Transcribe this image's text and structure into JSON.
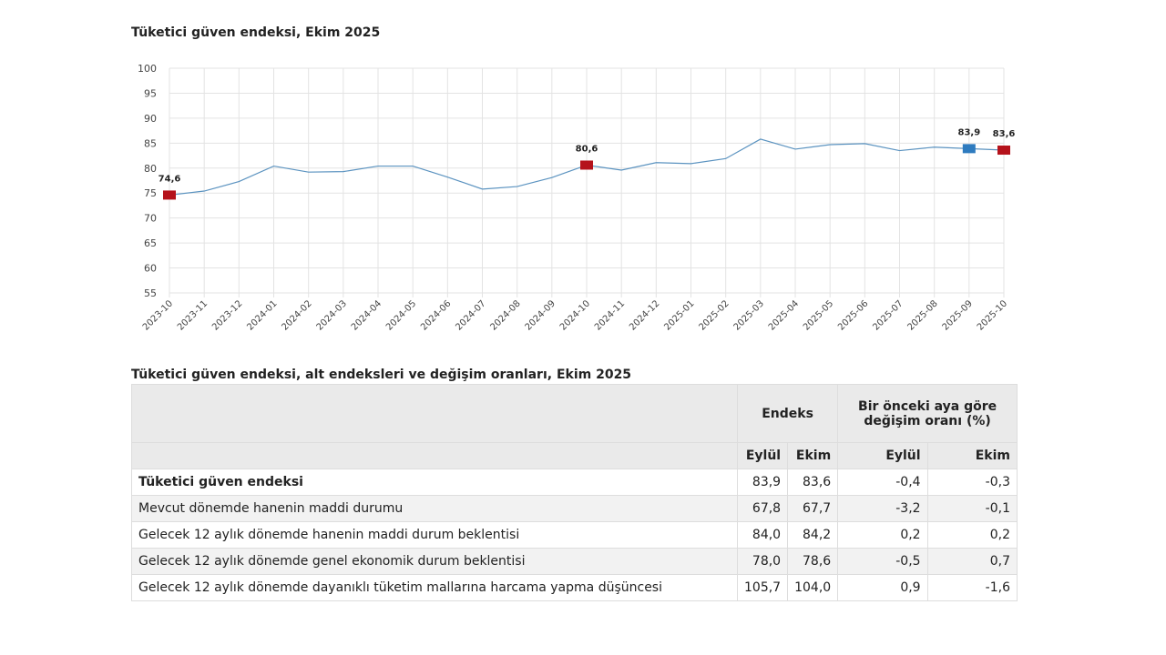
{
  "chart_data": {
    "type": "line",
    "title": "Tüketici güven endeksi, Ekim 2025",
    "x": [
      "2023-10",
      "2023-11",
      "2023-12",
      "2024-01",
      "2024-02",
      "2024-03",
      "2024-04",
      "2024-05",
      "2024-06",
      "2024-07",
      "2024-08",
      "2024-09",
      "2024-10",
      "2024-11",
      "2024-12",
      "2025-01",
      "2025-02",
      "2025-03",
      "2025-04",
      "2025-05",
      "2025-06",
      "2025-07",
      "2025-08",
      "2025-09",
      "2025-10"
    ],
    "values": [
      74.6,
      75.4,
      77.3,
      80.4,
      79.2,
      79.3,
      80.4,
      80.4,
      78.2,
      75.8,
      76.3,
      78.1,
      80.6,
      79.6,
      81.1,
      80.9,
      81.9,
      85.8,
      83.8,
      84.7,
      84.9,
      83.5,
      84.2,
      83.9,
      83.6
    ],
    "ylim": [
      55,
      100
    ],
    "yticks": [
      55,
      60,
      65,
      70,
      75,
      80,
      85,
      90,
      95,
      100
    ],
    "grid": true,
    "highlights": [
      {
        "x": "2023-10",
        "label": "74,6",
        "color": "#b5121b"
      },
      {
        "x": "2024-10",
        "label": "80,6",
        "color": "#b5121b"
      },
      {
        "x": "2025-09",
        "label": "83,9",
        "color": "#2e7bbf"
      },
      {
        "x": "2025-10",
        "label": "83,6",
        "color": "#b5121b"
      }
    ],
    "line_color": "#5b93c0"
  },
  "table": {
    "title": "Tüketici güven endeksi, alt endeksleri ve değişim oranları, Ekim 2025",
    "h_endeks": "Endeks",
    "h_change": "Bir önceki aya göre değişim oranı (%)",
    "sub": [
      "Eylül",
      "Ekim",
      "Eylül",
      "Ekim"
    ],
    "rows": [
      {
        "label": "Tüketici güven endeksi",
        "v": [
          "83,9",
          "83,6",
          "-0,4",
          "-0,3"
        ]
      },
      {
        "label": "Mevcut dönemde hanenin maddi durumu",
        "v": [
          "67,8",
          "67,7",
          "-3,2",
          "-0,1"
        ]
      },
      {
        "label": "Gelecek 12 aylık dönemde hanenin maddi durum beklentisi",
        "v": [
          "84,0",
          "84,2",
          "0,2",
          "0,2"
        ]
      },
      {
        "label": "Gelecek 12 aylık dönemde genel ekonomik durum beklentisi",
        "v": [
          "78,0",
          "78,6",
          "-0,5",
          "0,7"
        ]
      },
      {
        "label": "Gelecek 12 aylık dönemde dayanıklı tüketim mallarına harcama yapma düşüncesi",
        "v": [
          "105,7",
          "104,0",
          "0,9",
          "-1,6"
        ]
      }
    ]
  }
}
